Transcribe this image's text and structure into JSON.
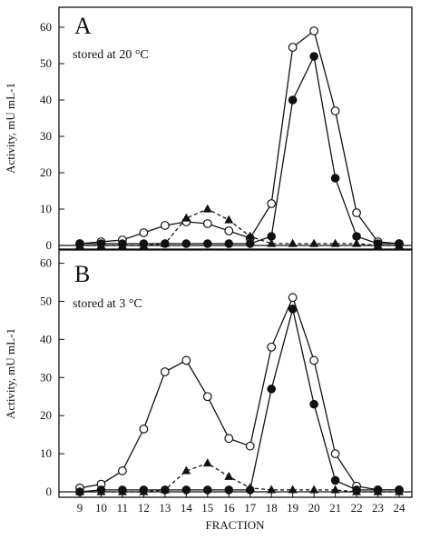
{
  "chart_data": {
    "type": "line",
    "xlabel": "FRACTION",
    "ylabel": "Activity, mU mL-1",
    "x": [
      9,
      10,
      11,
      12,
      13,
      14,
      15,
      16,
      17,
      18,
      19,
      20,
      21,
      22,
      23,
      24
    ],
    "xlim": [
      9,
      24
    ],
    "panels": [
      {
        "letter": "A",
        "note": "stored at 20 °C",
        "ylim": [
          0,
          65
        ],
        "yticks": [
          0,
          10,
          20,
          30,
          40,
          50,
          60
        ],
        "series": [
          {
            "marker": "open-circle",
            "line": "solid",
            "x": [
              9,
              10,
              11,
              12,
              13,
              14,
              15,
              16,
              17,
              18,
              19,
              20,
              21,
              22,
              23,
              24
            ],
            "values": [
              0.5,
              1,
              1.5,
              3.5,
              5.5,
              6.5,
              6,
              4,
              2,
              11.5,
              54.5,
              59,
              37,
              9,
              1,
              0.5
            ]
          },
          {
            "marker": "filled-circle",
            "line": "solid",
            "x": [
              9,
              10,
              11,
              12,
              13,
              14,
              15,
              16,
              17,
              18,
              19,
              20,
              21,
              22,
              23,
              24
            ],
            "values": [
              0.5,
              0.5,
              0.5,
              0.5,
              0.5,
              0.5,
              0.5,
              0.5,
              0.5,
              2.5,
              40,
              52,
              18.5,
              2.5,
              0.5,
              0.5
            ]
          },
          {
            "marker": "filled-triangle",
            "line": "dashed",
            "x": [
              9,
              10,
              11,
              12,
              13,
              14,
              15,
              16,
              17,
              18,
              19,
              20,
              21,
              22,
              23,
              24
            ],
            "values": [
              0,
              0,
              0,
              0,
              0.5,
              7.5,
              10,
              7,
              2.5,
              0.5,
              0.5,
              0.5,
              0.5,
              0.5,
              0,
              0
            ]
          }
        ]
      },
      {
        "letter": "B",
        "note": "stored at 3 °C",
        "ylim": [
          0,
          63
        ],
        "yticks": [
          0,
          10,
          20,
          30,
          40,
          50,
          60
        ],
        "series": [
          {
            "marker": "open-circle",
            "line": "solid",
            "x": [
              9,
              10,
              11,
              12,
              13,
              14,
              15,
              16,
              17,
              18,
              19,
              20,
              21,
              22,
              23,
              24
            ],
            "values": [
              1,
              2,
              5.5,
              16.5,
              31.5,
              34.5,
              25,
              14,
              12,
              38,
              51,
              34.5,
              10,
              1.5,
              0.5,
              0.5
            ]
          },
          {
            "marker": "filled-circle",
            "line": "solid",
            "x": [
              9,
              10,
              11,
              12,
              13,
              14,
              15,
              16,
              17,
              18,
              19,
              20,
              21,
              22,
              23,
              24
            ],
            "values": [
              0,
              0.5,
              0.5,
              0.5,
              0.5,
              0.5,
              0.5,
              0.5,
              0.5,
              27,
              48,
              23,
              3,
              0.5,
              0.5,
              0.5
            ]
          },
          {
            "marker": "filled-triangle",
            "line": "dashed",
            "x": [
              9,
              10,
              11,
              12,
              13,
              14,
              15,
              16,
              17,
              18,
              19,
              20,
              21,
              22,
              23,
              24
            ],
            "values": [
              0,
              0,
              0,
              0,
              0.5,
              5.5,
              7.5,
              4,
              1,
              0.5,
              0.5,
              0.5,
              0.5,
              0,
              0,
              0
            ]
          }
        ]
      }
    ]
  }
}
